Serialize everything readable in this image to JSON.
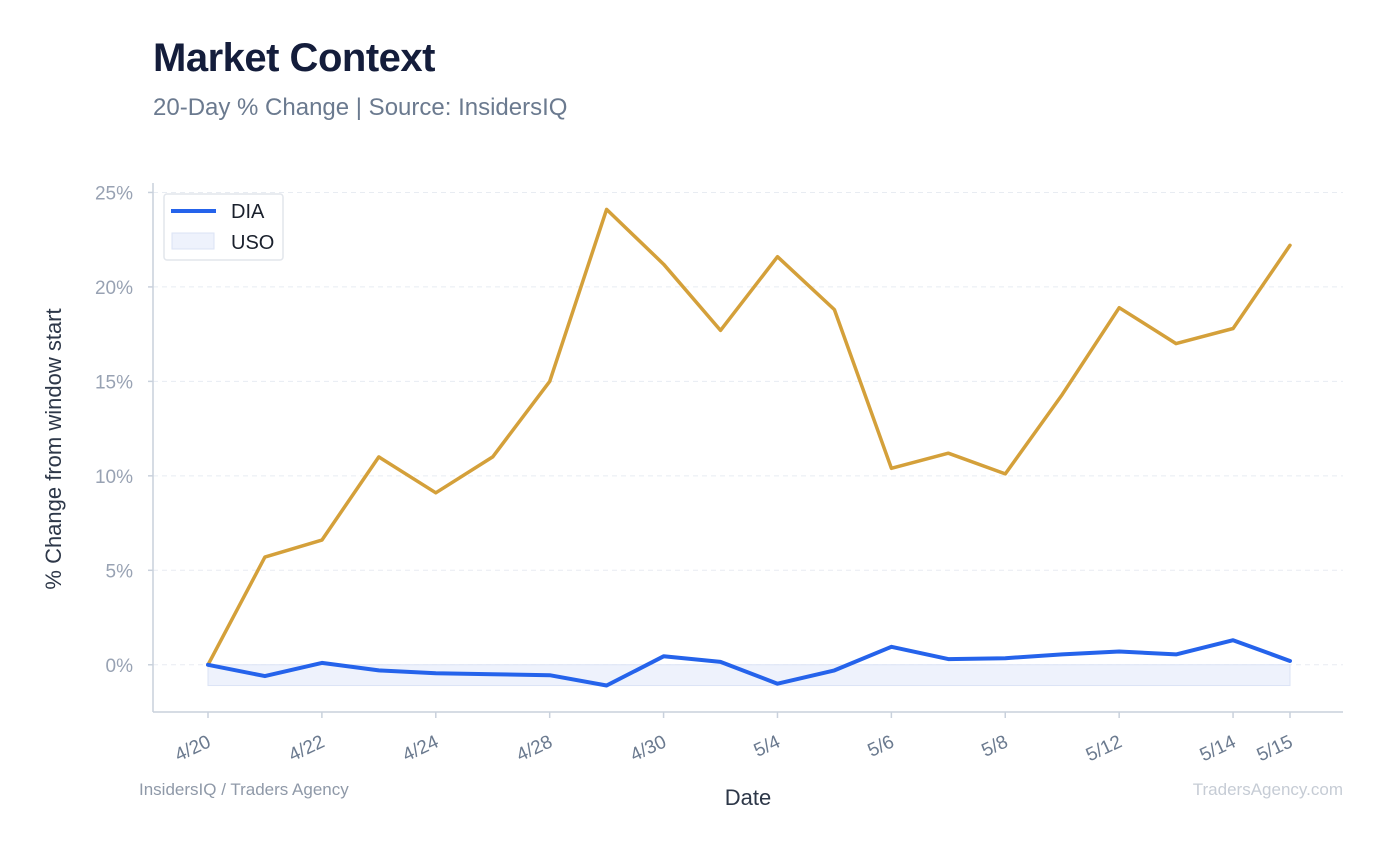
{
  "header": {
    "title": "Market Context",
    "subtitle": "20-Day % Change | Source: InsidersIQ"
  },
  "footer": {
    "left": "InsidersIQ / Traders Agency",
    "right": "TradersAgency.com"
  },
  "colors": {
    "dia": "#2563eb",
    "uso": "#d4a03a",
    "uso_band_fill": "#eef2fc",
    "grid": "#e8ecf2",
    "axis": "#c9d1dc"
  },
  "chart_data": {
    "type": "line",
    "xlabel": "Date",
    "ylabel": "% Change from window start",
    "ylim": [
      -2.5,
      25.5
    ],
    "yticks": [
      0,
      5,
      10,
      15,
      20,
      25
    ],
    "ytick_labels": [
      "0%",
      "5%",
      "10%",
      "15%",
      "20%",
      "25%"
    ],
    "x_tick_labels": [
      "4/20",
      "4/22",
      "4/24",
      "4/28",
      "4/30",
      "5/4",
      "5/6",
      "5/8",
      "5/12",
      "5/14",
      "5/15"
    ],
    "x_tick_positions": [
      0,
      2,
      4,
      6,
      8,
      10,
      12,
      14,
      16,
      18,
      19
    ],
    "grid": true,
    "legend_position": "top-left",
    "legend": [
      "DIA",
      "USO"
    ],
    "series": [
      {
        "name": "DIA",
        "style": "line",
        "values": [
          0.0,
          -0.6,
          0.1,
          -0.3,
          -0.45,
          -0.5,
          -0.55,
          -1.1,
          0.45,
          0.15,
          -1.0,
          -0.3,
          0.95,
          0.3,
          0.35,
          0.55,
          0.7,
          0.55,
          1.3,
          0.2
        ]
      },
      {
        "name": "USO",
        "style": "line",
        "values": [
          0.0,
          5.7,
          6.6,
          11.0,
          9.1,
          11.0,
          15.0,
          24.1,
          21.2,
          17.7,
          21.6,
          18.8,
          10.4,
          11.2,
          10.1,
          14.3,
          18.9,
          17.0,
          17.8,
          22.2
        ]
      }
    ]
  }
}
